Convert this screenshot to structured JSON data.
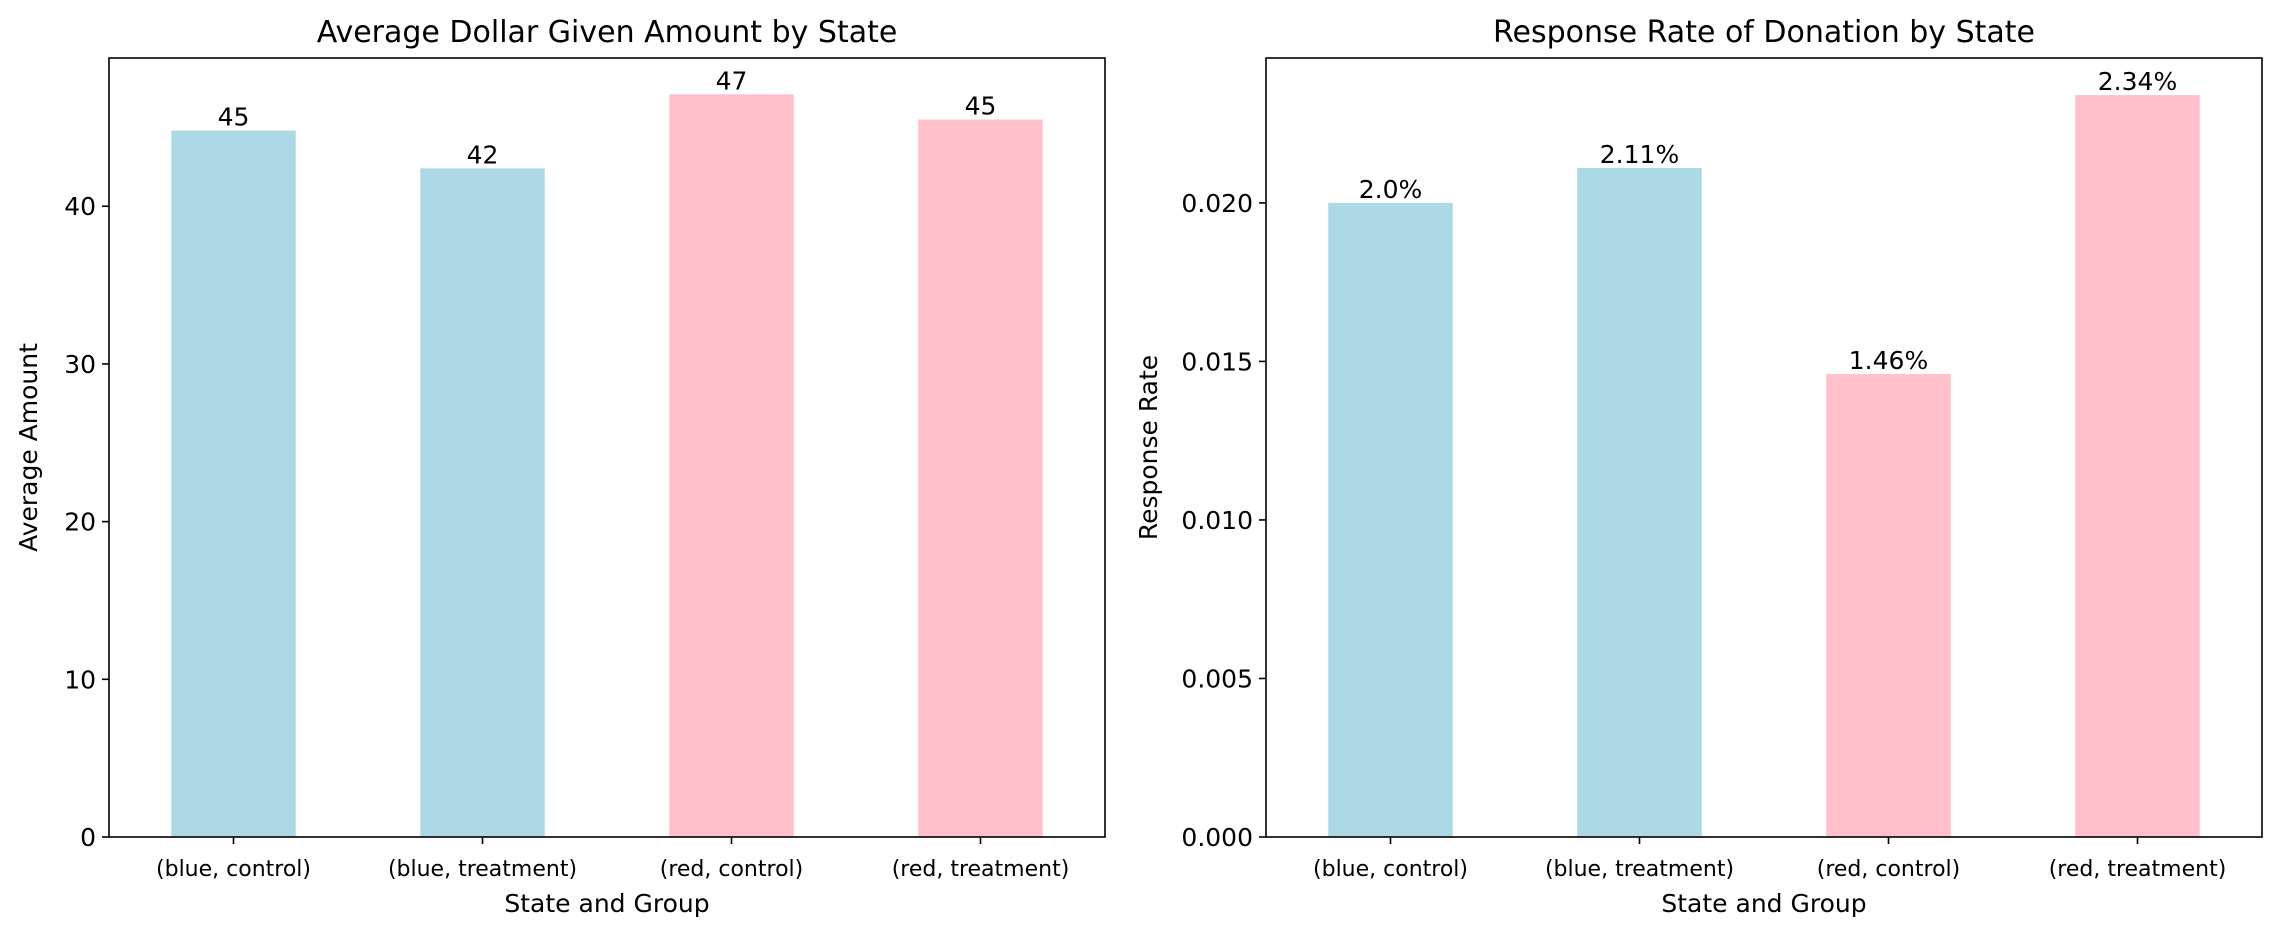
{
  "colors": {
    "blue": "#add8e6",
    "red": "#ffc0cb",
    "axis": "#000000",
    "background": "#ffffff"
  },
  "chart_data": [
    {
      "type": "bar",
      "title": "Average Dollar Given Amount by State",
      "xlabel": "State and Group",
      "ylabel": "Average Amount",
      "categories": [
        "(blue, control)",
        "(blue, treatment)",
        "(red, control)",
        "(red, treatment)"
      ],
      "values": [
        44.8,
        42.4,
        47.1,
        45.5
      ],
      "bar_labels": [
        "45",
        "42",
        "47",
        "45"
      ],
      "bar_colors": [
        "#add8e6",
        "#add8e6",
        "#ffc0cb",
        "#ffc0cb"
      ],
      "ylim": [
        0,
        49.4
      ],
      "yticks": [
        0,
        10,
        20,
        30,
        40
      ],
      "ytick_labels": [
        "0",
        "10",
        "20",
        "30",
        "40"
      ],
      "grid": false,
      "legend": false
    },
    {
      "type": "bar",
      "title": "Response Rate of Donation by State",
      "xlabel": "State and Group",
      "ylabel": "Response Rate",
      "categories": [
        "(blue, control)",
        "(blue, treatment)",
        "(red, control)",
        "(red, treatment)"
      ],
      "values": [
        0.02,
        0.0211,
        0.0146,
        0.0234
      ],
      "bar_labels": [
        "2.0%",
        "2.11%",
        "1.46%",
        "2.34%"
      ],
      "bar_colors": [
        "#add8e6",
        "#add8e6",
        "#ffc0cb",
        "#ffc0cb"
      ],
      "ylim": [
        0,
        0.02457
      ],
      "yticks": [
        0.0,
        0.005,
        0.01,
        0.015,
        0.02
      ],
      "ytick_labels": [
        "0.000",
        "0.005",
        "0.010",
        "0.015",
        "0.020"
      ],
      "grid": false,
      "legend": false
    }
  ]
}
